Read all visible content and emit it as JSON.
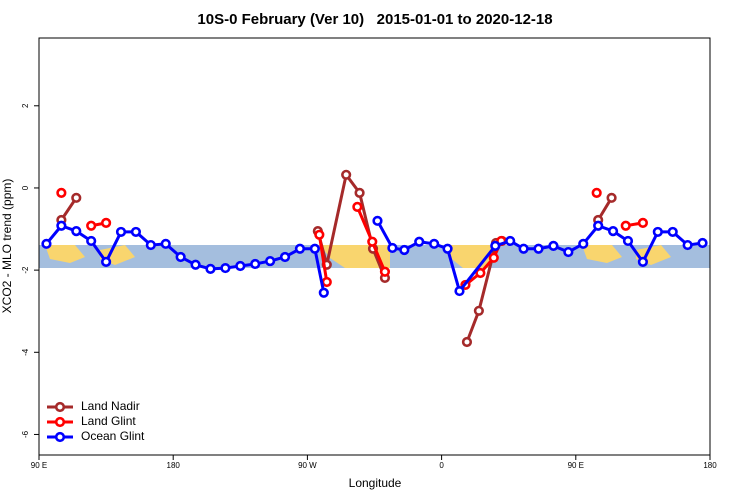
{
  "chart_data": {
    "type": "line",
    "title": "10S-0 February (Ver 10)   2015-01-01 to 2020-12-18",
    "x_label": "Longitude",
    "y_label": "XCO2 - MLO trend (ppm)",
    "xlim": [
      90,
      540
    ],
    "xticks": [
      {
        "value": 90,
        "label": "90 E"
      },
      180,
      {
        "value": 270,
        "label": "90 W"
      },
      {
        "value": 360,
        "label": "0"
      },
      {
        "value": 450,
        "label": "90 E"
      },
      {
        "value": 540,
        "label": "180"
      }
    ],
    "ylim": [
      -6.5,
      3.65
    ],
    "yticks": [
      -6,
      -4,
      -2,
      0,
      2
    ],
    "legend": "bottom-left",
    "series": [
      {
        "name": "Land Nadir",
        "color": "#a52a2a",
        "x": [
          105,
          115,
          200,
          277,
          283,
          296,
          305,
          314,
          322,
          350,
          377,
          385,
          396.5,
          400.5,
          430,
          465,
          474
        ],
        "values": [
          -0.78,
          -0.24,
          null,
          -1.05,
          -1.87,
          0.32,
          -0.12,
          -1.48,
          -2.19,
          null,
          -3.75,
          -2.99,
          -1.34,
          -1.29,
          null,
          -0.78,
          -0.24
        ]
      },
      {
        "name": "Land Glint",
        "color": "#ff0000",
        "x": [
          105,
          115,
          125,
          135,
          200,
          278,
          283,
          293,
          303.5,
          313.5,
          322,
          350,
          376,
          386,
          395,
          400,
          430,
          464,
          474,
          483.5,
          495
        ],
        "values": [
          -0.12,
          null,
          -0.92,
          -0.85,
          null,
          -1.14,
          -2.29,
          null,
          -0.46,
          -1.31,
          -2.04,
          null,
          -2.36,
          -2.07,
          -1.7,
          -1.29,
          null,
          -0.12,
          null,
          -0.92,
          -0.85
        ]
      },
      {
        "name": "Ocean Glint",
        "color": "#0000ff",
        "x": [
          95,
          105,
          115,
          125,
          135,
          145,
          155,
          165,
          175,
          185,
          195,
          205,
          215,
          225,
          235,
          245,
          255,
          265,
          275,
          281,
          300,
          317,
          327,
          335,
          345,
          355,
          364,
          372,
          396,
          406,
          415,
          425,
          435,
          445,
          455,
          465,
          475,
          485,
          495,
          505,
          515,
          525,
          535
        ],
        "values": [
          -1.36,
          -0.92,
          -1.05,
          -1.29,
          -1.8,
          -1.07,
          -1.07,
          -1.39,
          -1.36,
          -1.68,
          -1.87,
          -1.97,
          -1.95,
          -1.9,
          -1.85,
          -1.78,
          -1.68,
          -1.48,
          -1.48,
          -2.55,
          null,
          -0.8,
          -1.46,
          -1.51,
          -1.31,
          -1.36,
          -1.48,
          -2.51,
          -1.41,
          -1.29,
          -1.48,
          -1.48,
          -1.41,
          -1.56,
          -1.36,
          -0.92,
          -1.05,
          -1.29,
          -1.8,
          -1.07,
          -1.07,
          -1.39,
          -1.34
        ]
      }
    ]
  }
}
